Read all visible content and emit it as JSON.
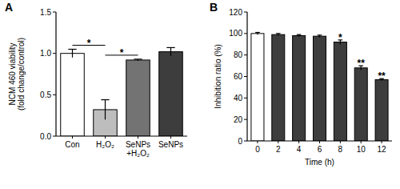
{
  "chart_data": [
    {
      "type": "bar",
      "title": "A",
      "categories": [
        "Con",
        "H₂O₂",
        "SeNPs\n+H₂O₂",
        "SeNPs"
      ],
      "values": [
        1.0,
        0.32,
        0.92,
        1.02
      ],
      "errors": [
        0.05,
        0.12,
        0.01,
        0.05
      ],
      "colors": [
        "#ffffff",
        "#bdbdbd",
        "#737373",
        "#3d3d3d"
      ],
      "y_label": "NCM 460 viability\n(fold change/control)",
      "ylim": [
        0,
        1.5
      ],
      "yticks": [
        {
          "value": 0,
          "label": "0.0"
        },
        0.5,
        {
          "value": 1,
          "label": "1.0"
        },
        1.5
      ],
      "annotations": [
        {
          "text": "*",
          "from": 0,
          "to": 1
        },
        {
          "text": "*",
          "from": 1,
          "to": 2
        }
      ]
    },
    {
      "type": "bar",
      "title": "B",
      "categories": [
        "0",
        "2",
        "4",
        "6",
        "8",
        "10",
        "12"
      ],
      "values": [
        100,
        99,
        98,
        97.5,
        92,
        68,
        57
      ],
      "errors": [
        1,
        1,
        1,
        1,
        2,
        2,
        1
      ],
      "colors": [
        "#ffffff",
        "#3d3d3d",
        "#3d3d3d",
        "#3d3d3d",
        "#3d3d3d",
        "#3d3d3d",
        "#3d3d3d"
      ],
      "y_label": "Inhibition ratio (%)",
      "x_label": "Time (h)",
      "ylim": [
        0,
        120
      ],
      "yticks": [
        0,
        20,
        40,
        60,
        80,
        100,
        120
      ],
      "annotations": [
        {
          "text": "*",
          "from": 4,
          "to": 4
        },
        {
          "text": "**",
          "from": 5,
          "to": 5
        },
        {
          "text": "**",
          "from": 6,
          "to": 6
        }
      ]
    }
  ]
}
